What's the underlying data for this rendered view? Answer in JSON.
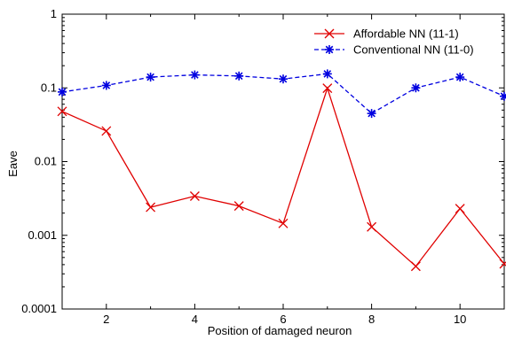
{
  "chart_data": {
    "type": "line",
    "title": "",
    "xlabel": "Position of damaged neuron",
    "ylabel": "Eave",
    "xlim": [
      1,
      11
    ],
    "ylim": [
      0.0001,
      1
    ],
    "yscale": "log",
    "x_ticks": [
      2,
      4,
      6,
      8,
      10
    ],
    "x_tick_labels": [
      "2",
      "4",
      "6",
      "8",
      "10"
    ],
    "y_ticks": [
      0.0001,
      0.001,
      0.01,
      0.1,
      1
    ],
    "y_tick_labels": [
      "0.0001",
      "0.001",
      "0.01",
      "0.1",
      "1"
    ],
    "grid": false,
    "legend_position": "top-right",
    "x": [
      1,
      2,
      3,
      4,
      5,
      6,
      7,
      8,
      9,
      10,
      11
    ],
    "series": [
      {
        "name": "Affordable NN (11-1)",
        "color": "#e00000",
        "line_style": "solid",
        "marker": "x",
        "values": [
          0.048,
          0.026,
          0.0024,
          0.0034,
          0.0025,
          0.00145,
          0.099,
          0.0013,
          0.00038,
          0.0023,
          0.00041
        ]
      },
      {
        "name": "Conventional NN (11-0)",
        "color": "#0000e0",
        "line_style": "dashed",
        "marker": "asterisk",
        "values": [
          0.088,
          0.108,
          0.14,
          0.15,
          0.145,
          0.132,
          0.155,
          0.045,
          0.1,
          0.14,
          0.077
        ]
      }
    ]
  }
}
